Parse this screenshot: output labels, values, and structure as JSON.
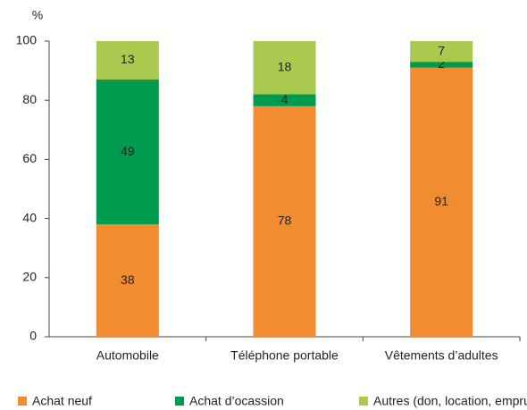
{
  "chart_data": {
    "type": "stacked_bar",
    "y_axis_label": "%",
    "categories": [
      "Automobile",
      "Téléphone portable",
      "Vêtements d’adultes"
    ],
    "series": [
      {
        "name": "Achat neuf",
        "color": "#f28c30",
        "values": [
          38,
          78,
          91
        ]
      },
      {
        "name": "Achat d’ocassion",
        "color": "#009a4e",
        "values": [
          49,
          4,
          2
        ]
      },
      {
        "name": "Autres (don, location, emprunt…)",
        "color": "#a9c94f",
        "values": [
          13,
          18,
          7
        ]
      }
    ],
    "ylim": [
      0,
      100
    ],
    "yticks": [
      0,
      20,
      40,
      60,
      80,
      100
    ]
  }
}
